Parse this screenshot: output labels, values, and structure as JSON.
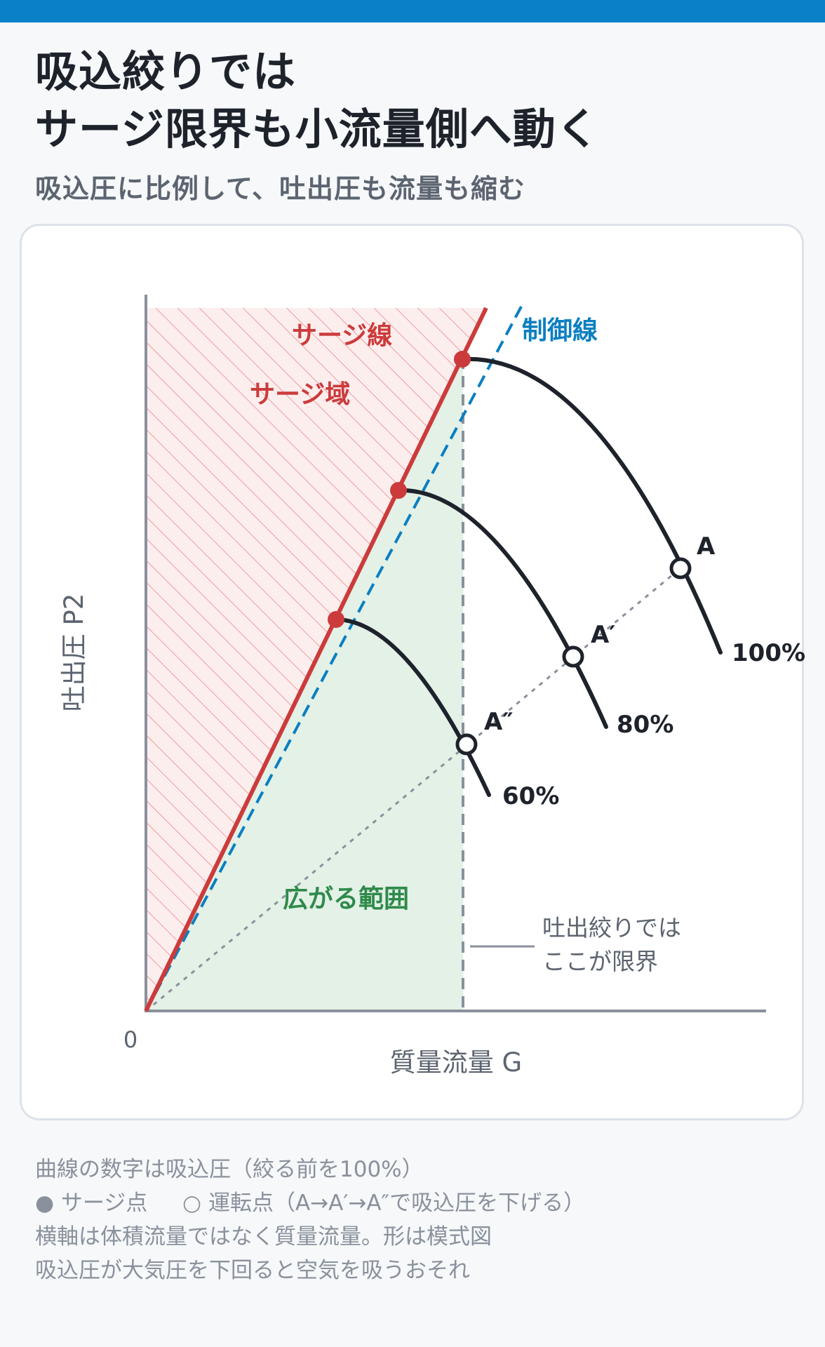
{
  "header": {
    "title_line1": "吸込絞りでは",
    "title_line2": "サージ限界も小流量側へ動く",
    "subtitle": "吸込圧に比例して、吐出圧も流量も縮む"
  },
  "colors": {
    "accent_bar": "#0a80c9",
    "surge_line": "#cc3b3b",
    "control_line": "#0b7fc1",
    "curve": "#1d222b",
    "safe_region": "#e3f1e7",
    "surge_region_fill": "#fdeeee",
    "surge_region_hatch": "#ee9c9c",
    "axis": "#8a919c",
    "region_label": "#2f8a4a"
  },
  "diagram": {
    "origin_label": "0",
    "x_axis_label": "質量流量 G",
    "y_axis_label": "吐出圧 P2",
    "surge_line_label": "サージ線",
    "surge_region_label": "サージ域",
    "control_line_label": "制御線",
    "safe_region_label": "広がる範囲",
    "limit_note_line1": "吐出絞りでは",
    "limit_note_line2": "ここが限界",
    "curves": [
      {
        "label": "100%",
        "point_label": "A",
        "suction_pressure_pct": 100
      },
      {
        "label": "80%",
        "point_label": "A′",
        "suction_pressure_pct": 80
      },
      {
        "label": "60%",
        "point_label": "A″",
        "suction_pressure_pct": 60
      }
    ]
  },
  "notes": {
    "line1": "曲線の数字は吸込圧（絞る前を100%）",
    "legend_filled_symbol": "●",
    "legend_filled_text": "サージ点",
    "legend_open_symbol": "○",
    "legend_open_text": "運転点（A→A′→A″で吸込圧を下げる）",
    "line3": "横軸は体積流量ではなく質量流量。形は模式図",
    "line4": "吸込圧が大気圧を下回ると空気を吸うおそれ"
  }
}
